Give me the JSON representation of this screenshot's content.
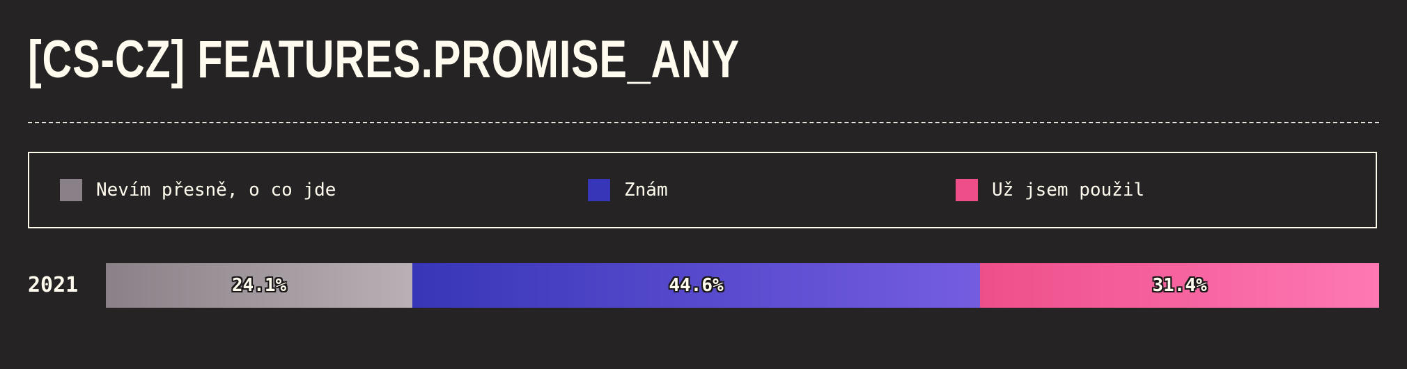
{
  "title": "[CS-CZ] FEATURES.PROMISE_ANY",
  "chart_data": {
    "type": "bar",
    "orientation": "horizontal-stacked-percent",
    "title": "[CS-CZ] FEATURES.PROMISE_ANY",
    "categories": [
      "2021"
    ],
    "series": [
      {
        "name": "Nevím přesně, o co jde",
        "values": [
          24.1
        ],
        "labels": [
          "24.1%"
        ],
        "color": "#8a8188",
        "gradient": [
          "#8a8188",
          "#b8b0b4"
        ]
      },
      {
        "name": "Znám",
        "values": [
          44.6
        ],
        "labels": [
          "44.6%"
        ],
        "color": "#3836b8",
        "gradient": [
          "#3836b8",
          "#755de0"
        ]
      },
      {
        "name": "Už jsem použil",
        "values": [
          31.4
        ],
        "labels": [
          "31.4%"
        ],
        "color": "#ee4f8a",
        "gradient": [
          "#ee4f8a",
          "#fe78b4"
        ]
      }
    ],
    "xlim": [
      0,
      100
    ],
    "legend": "top",
    "grid": false
  }
}
